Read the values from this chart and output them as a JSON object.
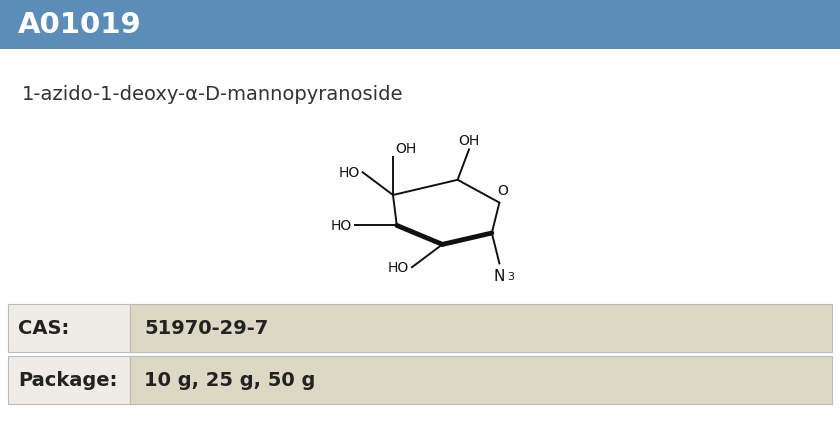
{
  "product_id": "A01019",
  "compound_name": "1-azido-1-deoxy-α-D-mannopyranoside",
  "cas_label": "CAS:",
  "cas_value": "51970-29-7",
  "package_label": "Package:",
  "package_value": "10 g, 25 g, 50 g",
  "header_bg_color": "#5b8db8",
  "header_text_color": "#ffffff",
  "body_bg_color": "#ffffff",
  "table_label_bg": "#eeece4",
  "table_value_bg": "#ddd8c4",
  "border_color": "#bbbbbb",
  "fig_width": 8.4,
  "fig_height": 4.31
}
